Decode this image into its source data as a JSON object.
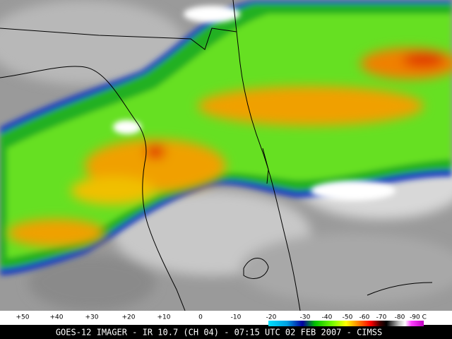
{
  "colorbar": {
    "labels": [
      "+50",
      "+40",
      "+30",
      "+20",
      "+10",
      "0",
      "-10",
      "-20",
      "-30",
      "-40",
      "-50",
      "-60",
      "-70",
      "-80",
      "-90 C"
    ]
  },
  "caption": "GOES-12 IMAGER - IR 10.7 (CH 04) - 07:15 UTC 02 FEB 2007 - CIMSS"
}
